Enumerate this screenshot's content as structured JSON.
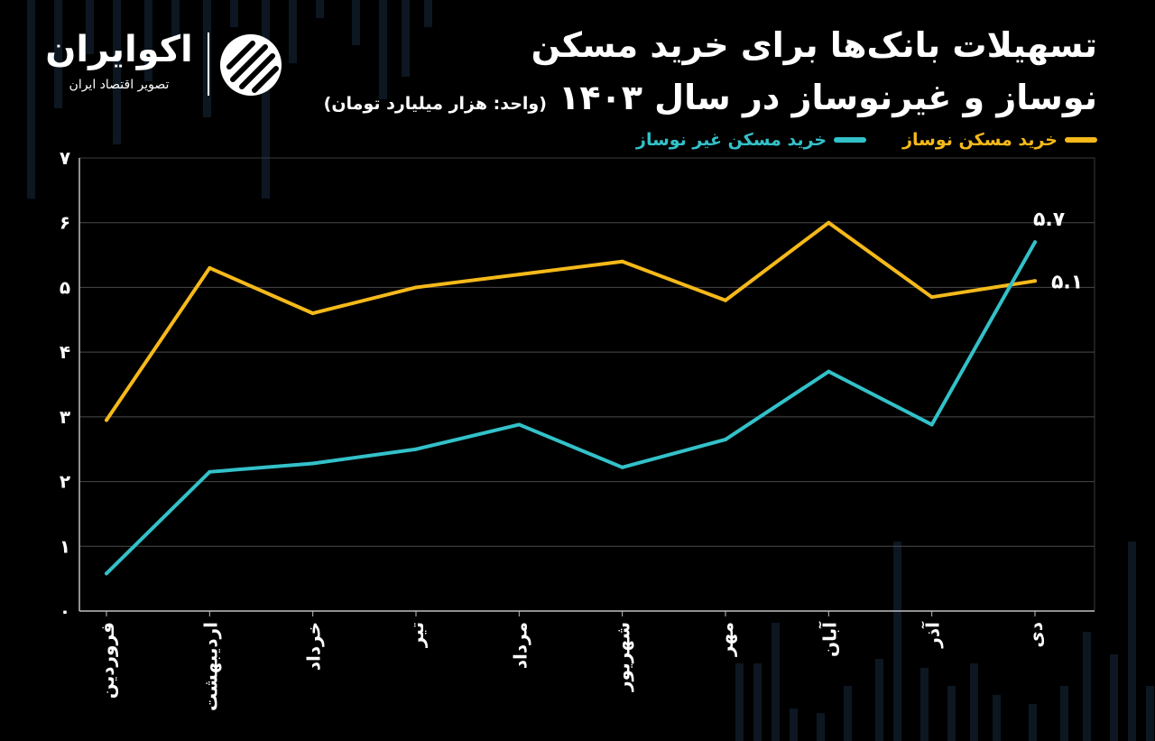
{
  "header": {
    "title_line1": "تسهیلات بانک‌ها برای خرید مسکن",
    "title_line2": "نوساز و غیرنوساز در سال ۱۴۰۳",
    "unit_note": "(واحد: هزار میلیارد تومان)"
  },
  "brand": {
    "name": "اکوایران",
    "tagline": "تصویر اقتصاد ایران",
    "logo_icon": "ecoiran-stripes-icon"
  },
  "colors": {
    "background": "#000000",
    "grid": "#4a4a4a",
    "axis": "#bfbfbf",
    "new_series": "#f5b91a",
    "old_series": "#33c1c9",
    "text": "#ffffff"
  },
  "chart_data": {
    "type": "line",
    "categories": [
      "فروردین",
      "اردیبهشت",
      "خرداد",
      "تیر",
      "مرداد",
      "شهریور",
      "مهر",
      "آبان",
      "آذر",
      "دی"
    ],
    "series": [
      {
        "name": "خرید مسکن نوساز",
        "color": "#f5b91a",
        "values": [
          2.95,
          5.3,
          4.6,
          5.0,
          5.2,
          5.4,
          4.8,
          6.0,
          4.85,
          5.1
        ],
        "end_label": "۵.۱"
      },
      {
        "name": "خرید مسکن غیر نوساز",
        "color": "#33c1c9",
        "values": [
          0.58,
          2.15,
          2.28,
          2.5,
          2.88,
          2.22,
          2.65,
          3.7,
          2.88,
          5.7
        ],
        "end_label": "۵.۷"
      }
    ],
    "y_ticks": [
      "۰",
      "۱",
      "۲",
      "۳",
      "۴",
      "۵",
      "۶",
      "۷"
    ],
    "ylim": [
      0,
      7
    ],
    "grid": true,
    "legend_position": "top-right"
  }
}
